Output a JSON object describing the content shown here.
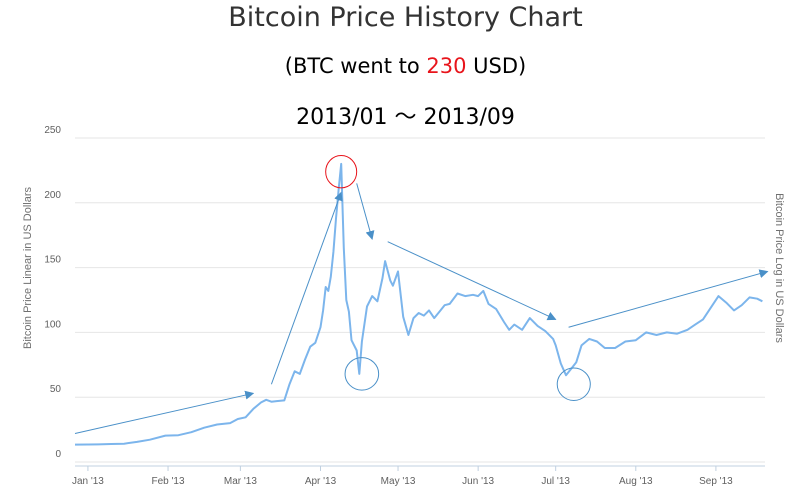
{
  "chart_data": {
    "type": "line",
    "title": "Bitcoin Price History Chart",
    "subtitle_before": "(BTC went to ",
    "subtitle_value": "230",
    "subtitle_after": " USD)",
    "date_range": "2013/01 〜 2013/09",
    "ylabel": "Bitcoin Price Linear in US Dollars",
    "ylabel_right": "Bitcoin Price Log in US Dollars",
    "ylim": [
      0,
      250
    ],
    "y_ticks": [
      "0",
      "50",
      "100",
      "150",
      "200",
      "250"
    ],
    "x_ticks": [
      {
        "date": "2013-01-01",
        "label": "Jan '13"
      },
      {
        "date": "2013-02-01",
        "label": "Feb '13"
      },
      {
        "date": "2013-03-01",
        "label": "Mar '13"
      },
      {
        "date": "2013-04-01",
        "label": "Apr '13"
      },
      {
        "date": "2013-05-01",
        "label": "May '13"
      },
      {
        "date": "2013-06-01",
        "label": "Jun '13"
      },
      {
        "date": "2013-07-01",
        "label": "Jul '13"
      },
      {
        "date": "2013-08-01",
        "label": "Aug '13"
      },
      {
        "date": "2013-09-01",
        "label": "Sep '13"
      }
    ],
    "grid": true,
    "colors": {
      "line": "#7cb5ec",
      "annotation": "#4a90c8",
      "peak_circle": "#e8141b",
      "highlight": "#e8141b"
    },
    "series": [
      {
        "points": [
          [
            "2012-12-27",
            13.4
          ],
          [
            "2013-01-01",
            13.5
          ],
          [
            "2013-01-05",
            13.6
          ],
          [
            "2013-01-10",
            13.9
          ],
          [
            "2013-01-15",
            14.1
          ],
          [
            "2013-01-20",
            15.5
          ],
          [
            "2013-01-25",
            17.2
          ],
          [
            "2013-01-31",
            20.4
          ],
          [
            "2013-02-05",
            20.7
          ],
          [
            "2013-02-10",
            23.0
          ],
          [
            "2013-02-15",
            26.5
          ],
          [
            "2013-02-20",
            28.9
          ],
          [
            "2013-02-25",
            30.0
          ],
          [
            "2013-02-28",
            33.2
          ],
          [
            "2013-03-03",
            34.5
          ],
          [
            "2013-03-06",
            41.0
          ],
          [
            "2013-03-09",
            46.0
          ],
          [
            "2013-03-11",
            48.0
          ],
          [
            "2013-03-13",
            46.5
          ],
          [
            "2013-03-15",
            47.0
          ],
          [
            "2013-03-18",
            47.5
          ],
          [
            "2013-03-20",
            60.0
          ],
          [
            "2013-03-22",
            70.0
          ],
          [
            "2013-03-24",
            68.0
          ],
          [
            "2013-03-26",
            79.0
          ],
          [
            "2013-03-28",
            89.0
          ],
          [
            "2013-03-30",
            92.0
          ],
          [
            "2013-04-01",
            104.0
          ],
          [
            "2013-04-02",
            117.0
          ],
          [
            "2013-04-03",
            135.0
          ],
          [
            "2013-04-04",
            132.0
          ],
          [
            "2013-04-05",
            143.0
          ],
          [
            "2013-04-06",
            162.0
          ],
          [
            "2013-04-07",
            188.0
          ],
          [
            "2013-04-08",
            210.0
          ],
          [
            "2013-04-09",
            230.0
          ],
          [
            "2013-04-10",
            165.0
          ],
          [
            "2013-04-11",
            125.0
          ],
          [
            "2013-04-12",
            116.0
          ],
          [
            "2013-04-13",
            94.0
          ],
          [
            "2013-04-15",
            86.0
          ],
          [
            "2013-04-16",
            68.0
          ],
          [
            "2013-04-17",
            93.0
          ],
          [
            "2013-04-19",
            120.0
          ],
          [
            "2013-04-21",
            128.0
          ],
          [
            "2013-04-23",
            124.0
          ],
          [
            "2013-04-25",
            142.0
          ],
          [
            "2013-04-26",
            155.0
          ],
          [
            "2013-04-28",
            140.0
          ],
          [
            "2013-04-29",
            136.0
          ],
          [
            "2013-05-01",
            147.0
          ],
          [
            "2013-05-03",
            112.0
          ],
          [
            "2013-05-05",
            98.0
          ],
          [
            "2013-05-07",
            111.0
          ],
          [
            "2013-05-09",
            115.0
          ],
          [
            "2013-05-11",
            113.0
          ],
          [
            "2013-05-13",
            117.0
          ],
          [
            "2013-05-15",
            111.0
          ],
          [
            "2013-05-17",
            116.0
          ],
          [
            "2013-05-19",
            121.0
          ],
          [
            "2013-05-21",
            122.0
          ],
          [
            "2013-05-24",
            130.0
          ],
          [
            "2013-05-27",
            128.0
          ],
          [
            "2013-05-30",
            129.0
          ],
          [
            "2013-06-01",
            128.0
          ],
          [
            "2013-06-03",
            132.0
          ],
          [
            "2013-06-05",
            122.0
          ],
          [
            "2013-06-08",
            118.0
          ],
          [
            "2013-06-11",
            108.0
          ],
          [
            "2013-06-13",
            102.0
          ],
          [
            "2013-06-15",
            106.0
          ],
          [
            "2013-06-18",
            102.0
          ],
          [
            "2013-06-21",
            111.0
          ],
          [
            "2013-06-24",
            105.0
          ],
          [
            "2013-06-27",
            101.0
          ],
          [
            "2013-06-30",
            95.0
          ],
          [
            "2013-07-01",
            90.0
          ],
          [
            "2013-07-03",
            76.0
          ],
          [
            "2013-07-05",
            67.0
          ],
          [
            "2013-07-07",
            72.0
          ],
          [
            "2013-07-09",
            77.0
          ],
          [
            "2013-07-11",
            90.0
          ],
          [
            "2013-07-14",
            95.0
          ],
          [
            "2013-07-17",
            93.0
          ],
          [
            "2013-07-20",
            88.0
          ],
          [
            "2013-07-24",
            88.0
          ],
          [
            "2013-07-28",
            93.0
          ],
          [
            "2013-08-01",
            94.0
          ],
          [
            "2013-08-05",
            100.0
          ],
          [
            "2013-08-09",
            98.0
          ],
          [
            "2013-08-13",
            100.0
          ],
          [
            "2013-08-17",
            99.0
          ],
          [
            "2013-08-21",
            102.0
          ],
          [
            "2013-08-24",
            106.0
          ],
          [
            "2013-08-27",
            110.0
          ],
          [
            "2013-08-30",
            119.0
          ],
          [
            "2013-09-02",
            128.0
          ],
          [
            "2013-09-05",
            123.0
          ],
          [
            "2013-09-08",
            117.0
          ],
          [
            "2013-09-11",
            121.0
          ],
          [
            "2013-09-14",
            127.0
          ],
          [
            "2013-09-17",
            126.0
          ],
          [
            "2013-09-19",
            124.0
          ]
        ]
      }
    ],
    "annotation_arrows": [
      {
        "from": [
          "2012-12-27",
          22
        ],
        "to": [
          "2013-03-06",
          53
        ]
      },
      {
        "from": [
          "2013-03-13",
          60
        ],
        "to": [
          "2013-04-09",
          208
        ]
      },
      {
        "from": [
          "2013-04-15",
          215
        ],
        "to": [
          "2013-04-21",
          172
        ]
      },
      {
        "from": [
          "2013-04-27",
          170
        ],
        "to": [
          "2013-07-01",
          110
        ]
      },
      {
        "from": [
          "2013-07-06",
          104
        ],
        "to": [
          "2013-09-21",
          147
        ]
      }
    ],
    "annotation_circles": [
      {
        "role": "peak",
        "center": [
          "2013-04-09",
          224
        ],
        "rx_days": 6.0,
        "ry_value": 12.5
      },
      {
        "role": "trough",
        "center": [
          "2013-04-17",
          68
        ],
        "rx_days": 6.5,
        "ry_value": 12.5
      },
      {
        "role": "trough",
        "center": [
          "2013-07-08",
          60
        ],
        "rx_days": 6.4,
        "ry_value": 12.5
      }
    ]
  }
}
